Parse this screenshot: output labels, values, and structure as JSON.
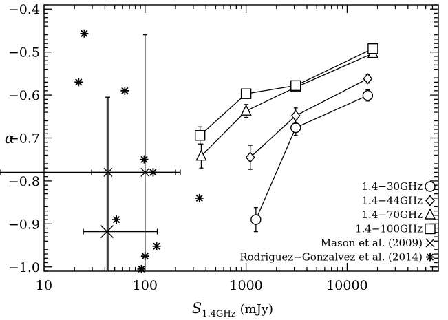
{
  "chart_data": {
    "type": "scatter",
    "x_scale": "log",
    "xlim": [
      10,
      80000
    ],
    "ylim": [
      -1.01,
      -0.39
    ],
    "x_ticks": [
      10,
      100,
      1000,
      10000
    ],
    "x_tick_labels": [
      "10",
      "100",
      "1000",
      "10000"
    ],
    "y_ticks": [
      -1.0,
      -0.9,
      -0.8,
      -0.7,
      -0.6,
      -0.5,
      -0.4
    ],
    "y_tick_labels": [
      "−1.0",
      "−0.9",
      "−0.8",
      "−0.7",
      "−0.6",
      "−0.5",
      "−0.4"
    ],
    "xlabel": "S",
    "xlabel_sub": "1.4GHz",
    "xlabel_unit": "(mJy)",
    "ylabel": "α",
    "legend_position": "bottom-right",
    "series": [
      {
        "name": "1.4−30GHz",
        "marker": "circle",
        "connected": true,
        "points": [
          {
            "x": 1250,
            "y": -0.89,
            "err": 0.028
          },
          {
            "x": 3100,
            "y": -0.676,
            "err": 0.018
          },
          {
            "x": 16000,
            "y": -0.601,
            "err": 0.013
          }
        ]
      },
      {
        "name": "1.4−44GHz",
        "marker": "diamond",
        "connected": true,
        "points": [
          {
            "x": 1100,
            "y": -0.745,
            "err": 0.028
          },
          {
            "x": 3100,
            "y": -0.648,
            "err": 0.018
          },
          {
            "x": 16000,
            "y": -0.562,
            "err": 0.01
          }
        ]
      },
      {
        "name": "1.4−70GHz",
        "marker": "triangle",
        "connected": true,
        "points": [
          {
            "x": 360,
            "y": -0.742,
            "err": 0.028
          },
          {
            "x": 1000,
            "y": -0.637,
            "err": 0.015
          },
          {
            "x": 3100,
            "y": -0.582,
            "err": 0.01
          },
          {
            "x": 18000,
            "y": -0.503,
            "err": 0.008
          }
        ]
      },
      {
        "name": "1.4−100GHz",
        "marker": "square",
        "connected": true,
        "points": [
          {
            "x": 350,
            "y": -0.694,
            "err": 0.02
          },
          {
            "x": 1000,
            "y": -0.597,
            "err": 0.008
          },
          {
            "x": 3100,
            "y": -0.578,
            "err": 0.008
          },
          {
            "x": 18000,
            "y": -0.492,
            "err": 0.008
          }
        ]
      },
      {
        "name": "Mason et al. (2009)",
        "marker": "cross",
        "connected": false,
        "points": [
          {
            "x": 43,
            "y": -0.78,
            "xerr_low": 13.5,
            "xerr_high": 180,
            "yerr_low": 0.23,
            "yerr_high": 0.175
          },
          {
            "x": 42,
            "y": -0.918,
            "xerr_low": 17.5,
            "xerr_high": 90,
            "yerr_low": 0.09,
            "yerr_high": 0.313
          },
          {
            "x": 100,
            "y": -0.78,
            "xerr_low": 100,
            "xerr_high": 100,
            "yerr_low": 0.23,
            "yerr_high": 0.32
          }
        ]
      },
      {
        "name": "Rodriguez−Gonzalvez et al. (2014)",
        "marker": "asterisk",
        "connected": false,
        "points": [
          {
            "x": 25,
            "y": -0.457
          },
          {
            "x": 22,
            "y": -0.57
          },
          {
            "x": 63,
            "y": -0.59
          },
          {
            "x": 98,
            "y": -0.75
          },
          {
            "x": 120,
            "y": -0.78
          },
          {
            "x": 345,
            "y": -0.84
          },
          {
            "x": 52,
            "y": -0.89
          },
          {
            "x": 130,
            "y": -0.952
          },
          {
            "x": 100,
            "y": -0.975
          },
          {
            "x": 92,
            "y": -1.005
          }
        ]
      }
    ]
  }
}
